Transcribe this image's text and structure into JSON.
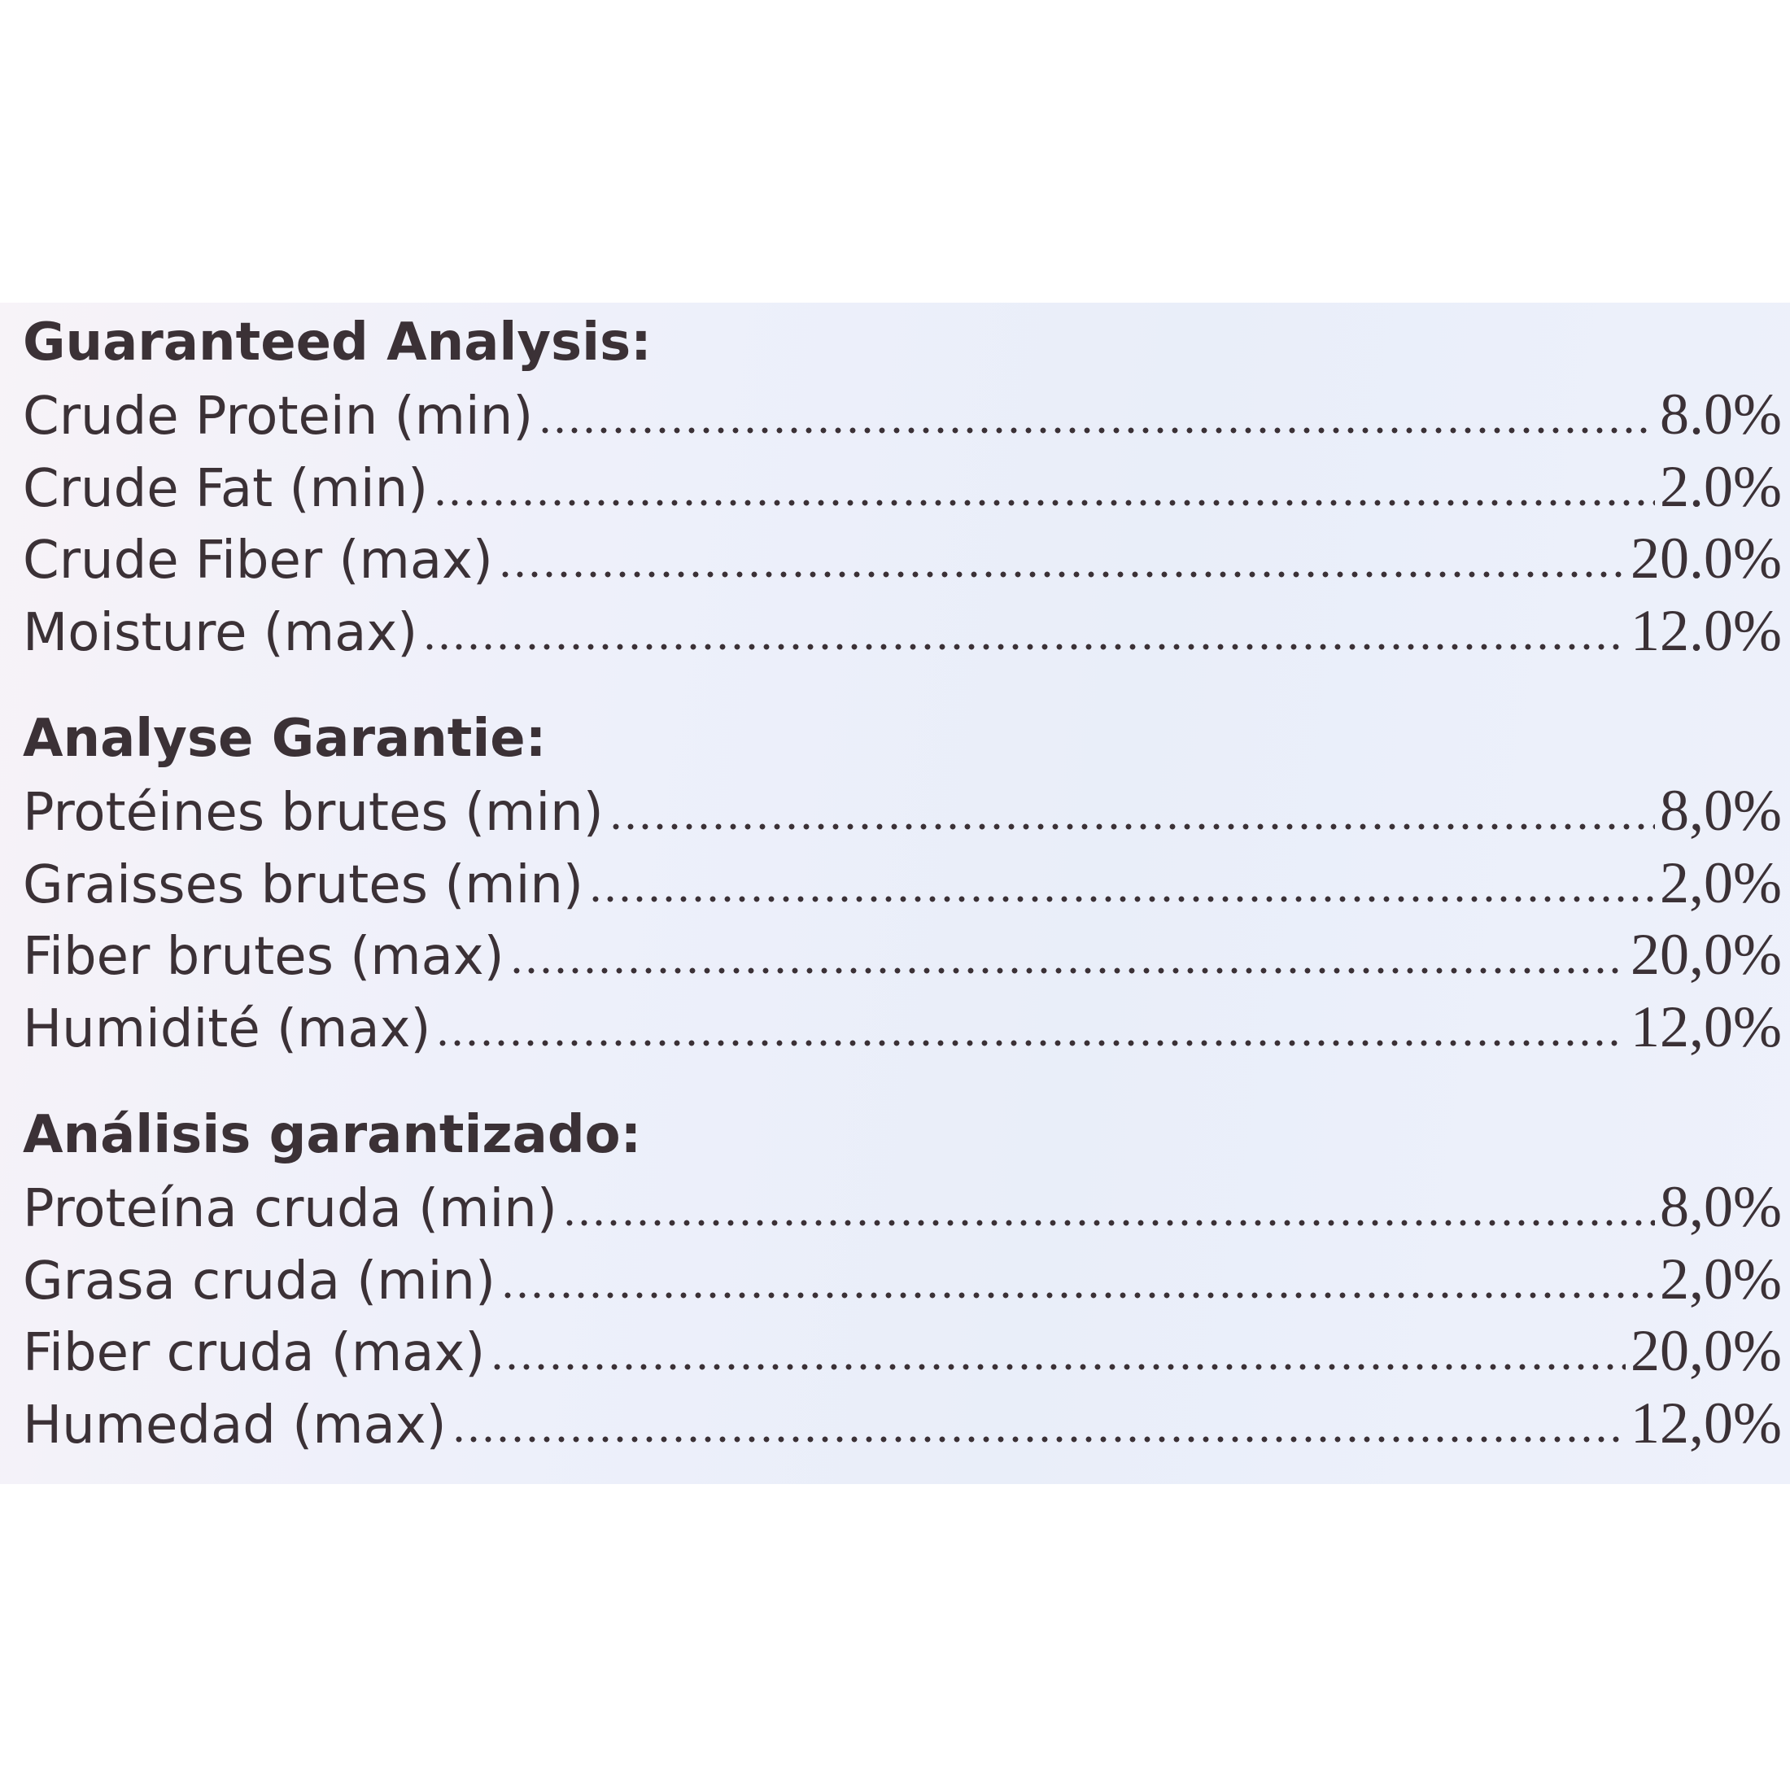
{
  "sections": [
    {
      "title": "Guaranteed Analysis:",
      "rows": [
        {
          "label": "Crude Protein (min)",
          "value": "8.0%"
        },
        {
          "label": "Crude Fat (min)",
          "value": "2.0%"
        },
        {
          "label": "Crude Fiber (max)",
          "value": "20.0%"
        },
        {
          "label": "Moisture (max)",
          "value": "12.0%"
        }
      ]
    },
    {
      "title": "Analyse Garantie:",
      "rows": [
        {
          "label": "Protéines brutes (min)",
          "value": "8,0%"
        },
        {
          "label": "Graisses brutes (min)",
          "value": "2,0%"
        },
        {
          "label": "Fiber brutes (max)",
          "value": "20,0%"
        },
        {
          "label": "Humidité (max)",
          "value": "12,0%"
        }
      ]
    },
    {
      "title": "Análisis garantizado:",
      "rows": [
        {
          "label": "Proteína cruda (min)",
          "value": "8,0%"
        },
        {
          "label": "Grasa cruda (min)",
          "value": "2,0%"
        },
        {
          "label": "Fiber cruda (max)",
          "value": "20,0%"
        },
        {
          "label": "Humedad (max)",
          "value": "12,0%"
        }
      ]
    }
  ]
}
